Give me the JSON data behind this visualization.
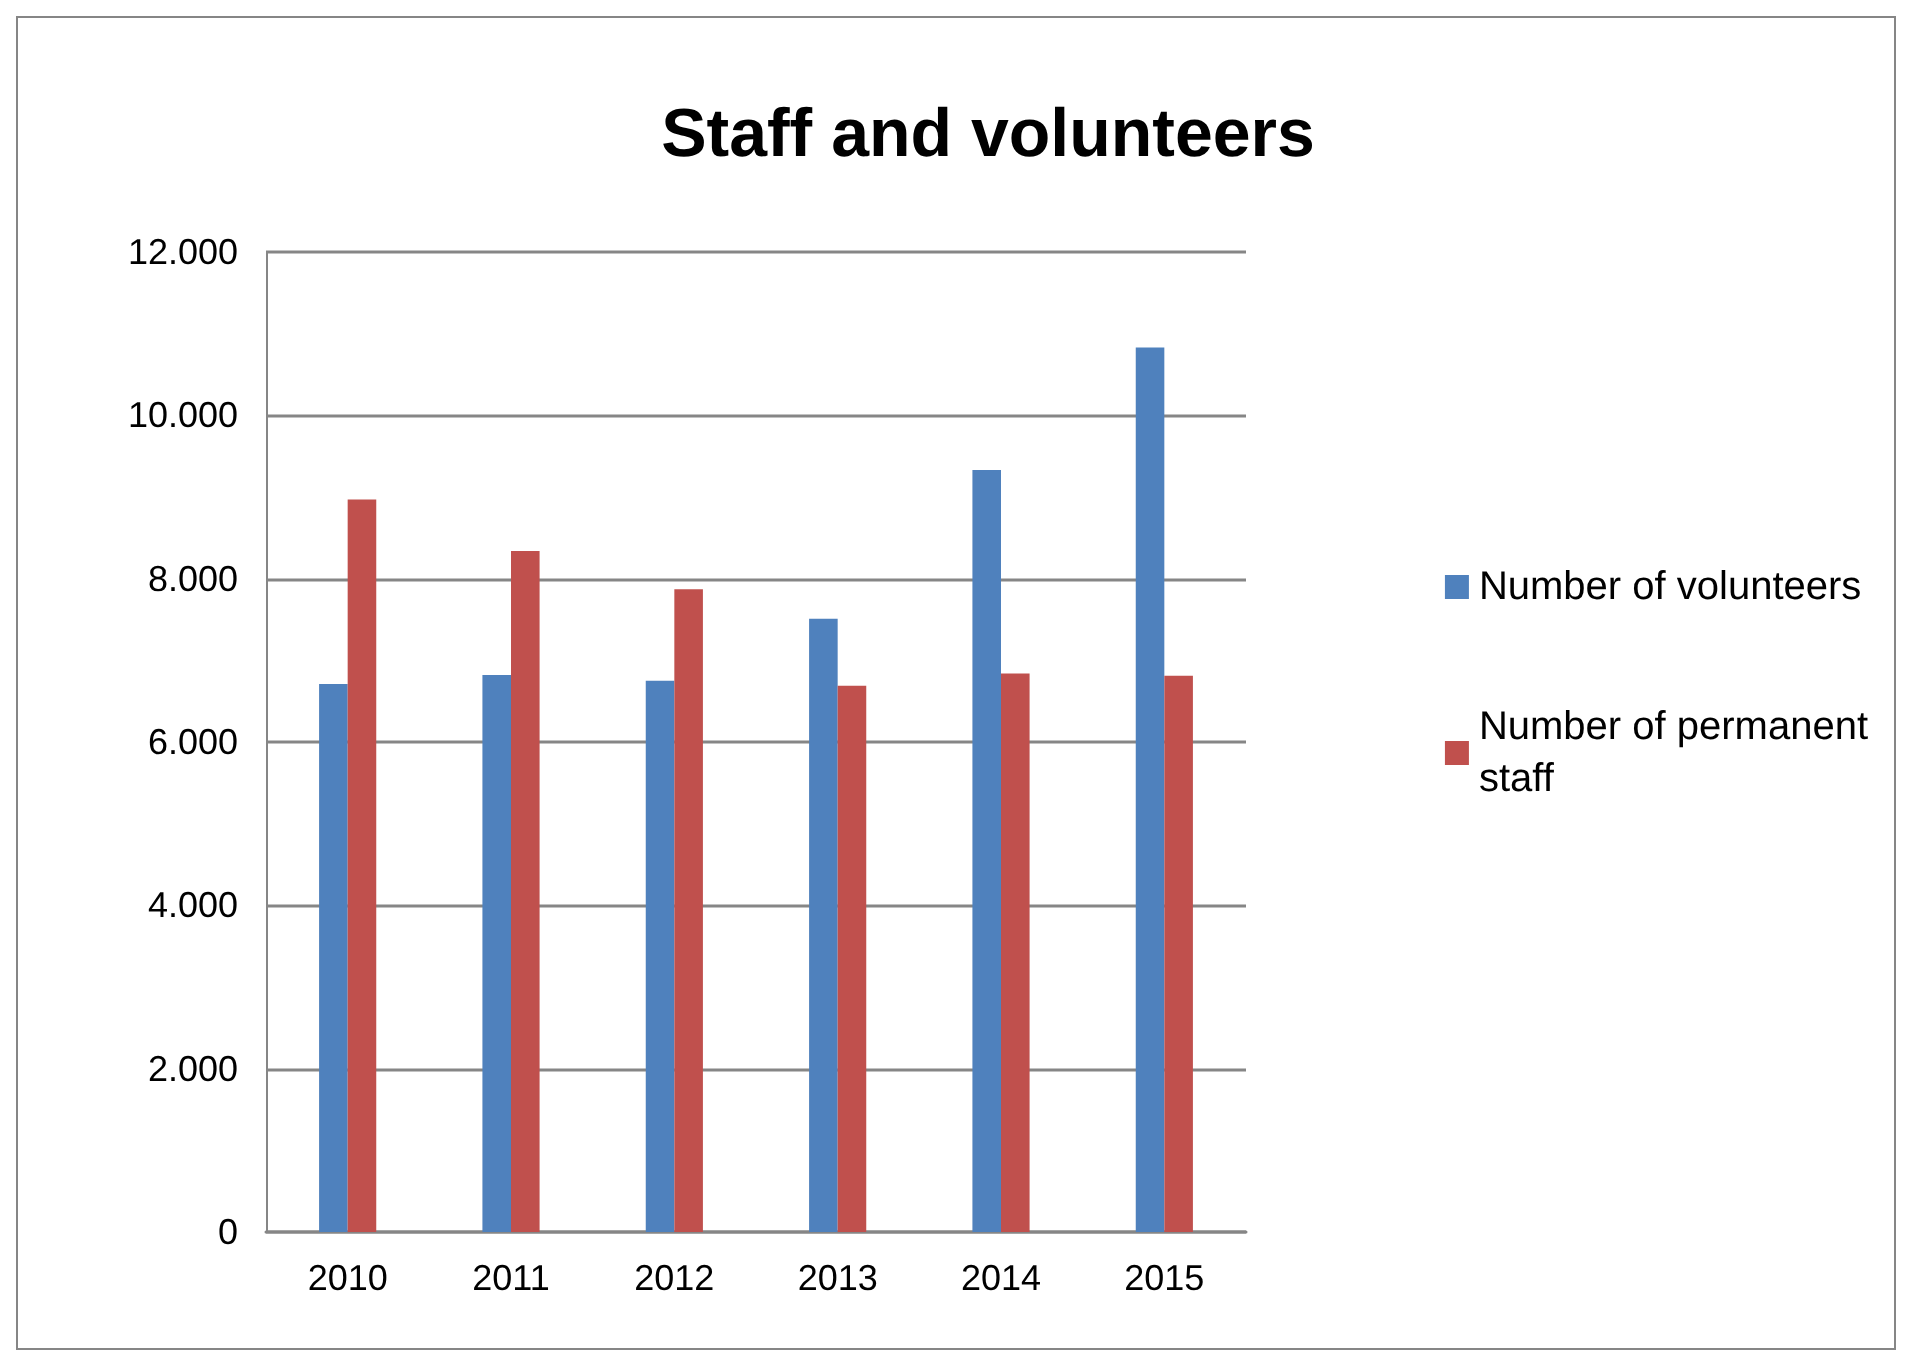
{
  "chart_data": {
    "type": "bar",
    "title": "Staff and volunteers",
    "categories": [
      "2010",
      "2011",
      "2012",
      "2013",
      "2014",
      "2015"
    ],
    "series": [
      {
        "name": "Number of volunteers",
        "color": "#4f81bd",
        "values": [
          6710,
          6820,
          6750,
          7510,
          9330,
          10830
        ]
      },
      {
        "name": "Number of permanent staff",
        "color": "#c0504d",
        "values": [
          8970,
          8340,
          7870,
          6690,
          6840,
          6810
        ]
      }
    ],
    "ylim": [
      0,
      12000
    ],
    "yticks": [
      {
        "value": 0,
        "label": "0"
      },
      {
        "value": 2000,
        "label": "2.000"
      },
      {
        "value": 4000,
        "label": "4.000"
      },
      {
        "value": 6000,
        "label": "6.000"
      },
      {
        "value": 8000,
        "label": "8.000"
      },
      {
        "value": 10000,
        "label": "10.000"
      },
      {
        "value": 12000,
        "label": "12.000"
      }
    ],
    "grid": "y",
    "legend": "right"
  }
}
